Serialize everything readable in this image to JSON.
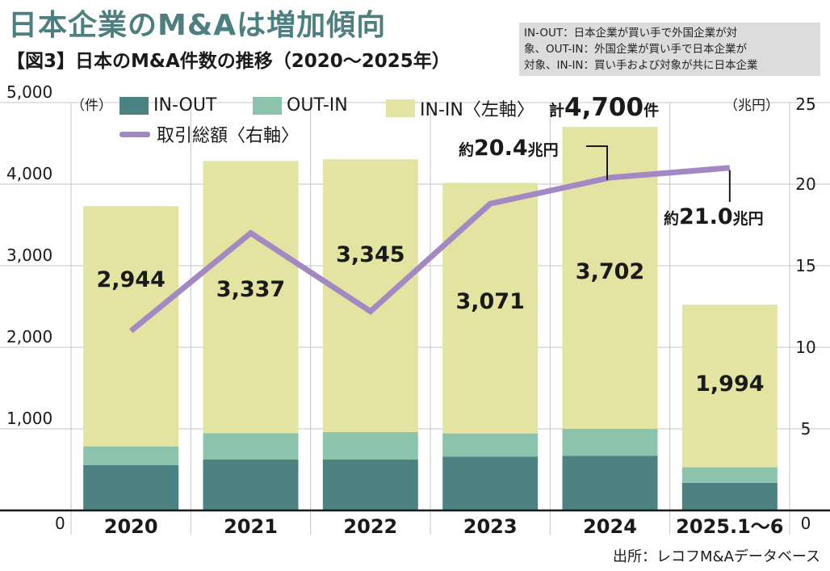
{
  "headline": "日本企業のM&Aは増加傾向",
  "subtitle": "【図3】日本のM&A件数の推移（2020〜2025年）",
  "note": {
    "lines": [
      "IN-OUT：日本企業が買い手で外国企業が対",
      "象、OUT-IN：外国企業が買い手で日本企業が",
      "対象、IN-IN：買い手および対象が共に日本企業"
    ]
  },
  "source": "出所：レコフM&Aデータベース",
  "chart_data": {
    "type": "bar",
    "stacked": true,
    "categories": [
      "2020",
      "2021",
      "2022",
      "2023",
      "2024",
      "2025.1〜6"
    ],
    "series": [
      {
        "name": "IN-OUT",
        "color": "#4d8282",
        "values": [
          557,
          626,
          626,
          659,
          669,
          338
        ]
      },
      {
        "name": "OUT-IN",
        "color": "#8cc3ad",
        "values": [
          229,
          321,
          334,
          285,
          331,
          191
        ]
      },
      {
        "name": "IN-IN〈左軸〉",
        "color": "#e3e4a1",
        "values": [
          2944,
          3337,
          3345,
          3071,
          3702,
          1994
        ],
        "labels": [
          "2,944",
          "3,337",
          "3,345",
          "3,071",
          "3,702",
          "1,994"
        ]
      }
    ],
    "line_series": {
      "name": "取引総額〈右軸〉",
      "color": "#a389c3",
      "axis": "right",
      "values": [
        11.0,
        17.0,
        12.2,
        18.8,
        20.4,
        21.0
      ]
    },
    "left_axis": {
      "unit": "（件）",
      "ylim": [
        0,
        5000
      ],
      "ticks": [
        "0",
        "1,000",
        "2,000",
        "3,000",
        "4,000",
        "5,000"
      ]
    },
    "right_axis": {
      "unit": "（兆円）",
      "ylim": [
        0,
        25
      ],
      "ticks": [
        "0",
        "5",
        "10",
        "15",
        "20",
        "25"
      ]
    },
    "grid": true,
    "legend_position": "top",
    "annotations": {
      "total_2024": {
        "prefix": "計",
        "value": "4,700",
        "suffix": "件"
      },
      "value_2024": {
        "prefix": "約",
        "value": "20.4",
        "suffix": "兆円"
      },
      "value_2025": {
        "prefix": "約",
        "value": "21.0",
        "suffix": "兆円"
      }
    }
  }
}
